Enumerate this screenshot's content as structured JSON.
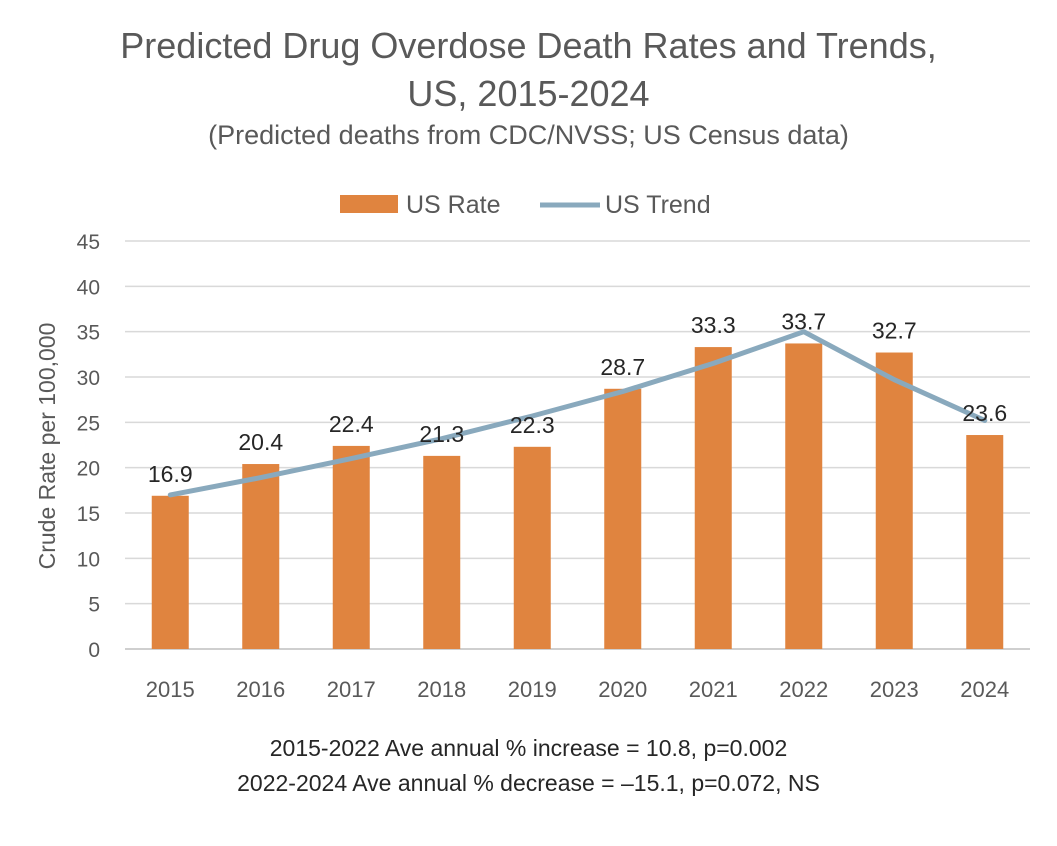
{
  "chart_data": {
    "type": "bar",
    "title": "Predicted Drug Overdose Death Rates and Trends,",
    "title_line2": "US, 2015-2024",
    "subtitle": "(Predicted deaths from CDC/NVSS; US Census data)",
    "ylabel": "Crude Rate per 100,000",
    "xlabel": "",
    "ylim": [
      0,
      45
    ],
    "yticks": [
      0,
      5,
      10,
      15,
      20,
      25,
      30,
      35,
      40,
      45
    ],
    "grid": true,
    "legend_position": "top",
    "categories": [
      "2015",
      "2016",
      "2017",
      "2018",
      "2019",
      "2020",
      "2021",
      "2022",
      "2023",
      "2024"
    ],
    "series": [
      {
        "name": "US Rate",
        "kind": "bar",
        "color": "#E0843F",
        "values": [
          16.9,
          20.4,
          22.4,
          21.3,
          22.3,
          28.7,
          33.3,
          33.7,
          32.7,
          23.6
        ],
        "labels": [
          "16.9",
          "20.4",
          "22.4",
          "21.3",
          "22.3",
          "28.7",
          "33.3",
          "33.7",
          "32.7",
          "23.6"
        ]
      },
      {
        "name": "US Trend",
        "kind": "line",
        "color": "#89A9BD",
        "values": [
          17.0,
          18.9,
          21.0,
          23.2,
          25.7,
          28.4,
          31.5,
          35.0,
          29.7,
          25.2
        ]
      }
    ],
    "annotations": [
      "2015-2022 Ave annual % increase = 10.8, p=0.002",
      "2022-2024 Ave annual % decrease = –15.1, p=0.072, NS"
    ]
  }
}
